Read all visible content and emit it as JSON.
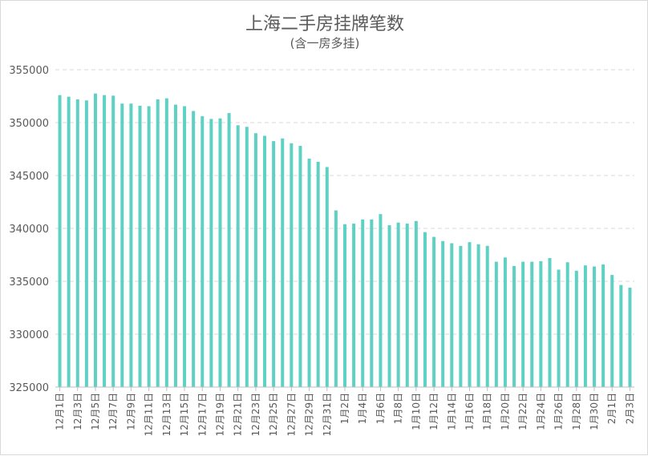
{
  "chart_data": {
    "type": "bar",
    "title": "上海二手房挂牌笔数",
    "subtitle": "(含一房多挂)",
    "xlabel": "",
    "ylabel": "",
    "ylim": [
      325000,
      355000
    ],
    "yticks": [
      325000,
      330000,
      335000,
      340000,
      345000,
      350000,
      355000
    ],
    "ytick_labels": [
      "325000",
      "330000",
      "335000",
      "340000",
      "345000",
      "350000",
      "355000"
    ],
    "grid": true,
    "legend": "none",
    "bar_color": "#5ed1c4",
    "categories": [
      "12月1日",
      "12月2日",
      "12月3日",
      "12月4日",
      "12月5日",
      "12月6日",
      "12月7日",
      "12月8日",
      "12月9日",
      "12月10日",
      "12月11日",
      "12月12日",
      "12月13日",
      "12月14日",
      "12月15日",
      "12月16日",
      "12月17日",
      "12月18日",
      "12月19日",
      "12月20日",
      "12月21日",
      "12月22日",
      "12月23日",
      "12月24日",
      "12月25日",
      "12月26日",
      "12月27日",
      "12月28日",
      "12月29日",
      "12月30日",
      "12月31日",
      "1月1日",
      "1月2日",
      "1月3日",
      "1月4日",
      "1月5日",
      "1月6日",
      "1月7日",
      "1月8日",
      "1月9日",
      "1月10日",
      "1月11日",
      "1月12日",
      "1月13日",
      "1月14日",
      "1月15日",
      "1月16日",
      "1月17日",
      "1月18日",
      "1月19日",
      "1月20日",
      "1月21日",
      "1月22日",
      "1月23日",
      "1月24日",
      "1月25日",
      "1月26日",
      "1月27日",
      "1月28日",
      "1月29日",
      "1月30日",
      "1月31日",
      "2月1日",
      "2月2日",
      "2月3日"
    ],
    "values": [
      352600,
      352450,
      352200,
      352100,
      352750,
      352600,
      352550,
      351800,
      351800,
      351600,
      351550,
      352200,
      352300,
      351700,
      351550,
      351100,
      350600,
      350350,
      350400,
      350900,
      349750,
      349600,
      349000,
      348750,
      348250,
      348500,
      348050,
      347800,
      346600,
      346300,
      345800,
      341700,
      340400,
      340450,
      340850,
      340850,
      341350,
      340300,
      340550,
      340450,
      340700,
      339650,
      339200,
      338800,
      338600,
      338350,
      338700,
      338500,
      338350,
      336850,
      337250,
      336450,
      336850,
      336850,
      336900,
      337200,
      336100,
      336800,
      336000,
      336500,
      336400,
      336600,
      335600,
      334650,
      334400
    ],
    "xtick_every": 2
  }
}
